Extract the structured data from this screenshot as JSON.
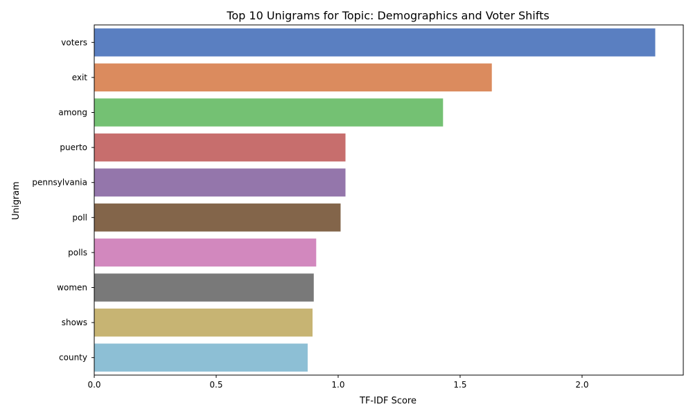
{
  "chart_data": {
    "type": "bar",
    "orientation": "horizontal",
    "title": "Top 10 Unigrams for Topic: Demographics and Voter Shifts",
    "xlabel": "TF-IDF Score",
    "ylabel": "Unigram",
    "categories": [
      "voters",
      "exit",
      "among",
      "puerto",
      "pennsylvania",
      "poll",
      "polls",
      "women",
      "shows",
      "county"
    ],
    "values": [
      2.3,
      1.63,
      1.43,
      1.03,
      1.03,
      1.01,
      0.91,
      0.9,
      0.895,
      0.875
    ],
    "colors": [
      "#5a7fc1",
      "#db8b5e",
      "#74c173",
      "#c76e6d",
      "#9476ab",
      "#83654a",
      "#d288be",
      "#797979",
      "#c7b473",
      "#8dbfd5"
    ],
    "xlim": [
      0,
      2.415
    ],
    "xticks": [
      0.0,
      0.5,
      1.0,
      1.5,
      2.0
    ],
    "xtick_labels": [
      "0.0",
      "0.5",
      "1.0",
      "1.5",
      "2.0"
    ],
    "grid": false,
    "legend": "none"
  }
}
